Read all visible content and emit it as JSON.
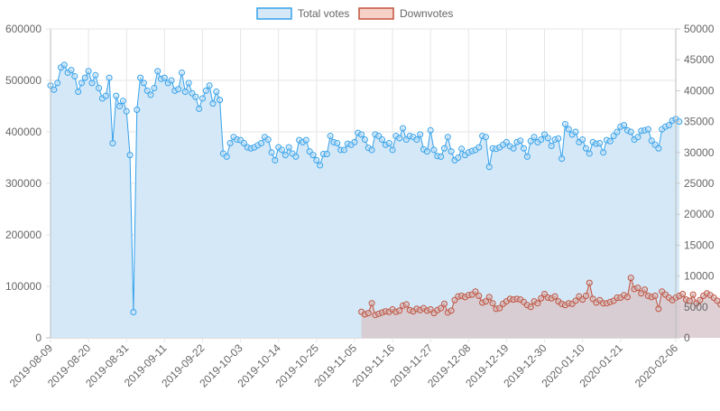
{
  "chart_data": {
    "type": "line",
    "title": "",
    "legend_position": "top",
    "grid": true,
    "x": {
      "start": "2019-08-09",
      "end": "2020-02-06",
      "tick_labels": [
        "2019-08-09",
        "2019-08-20",
        "2019-08-31",
        "2019-09-11",
        "2019-09-22",
        "2019-10-03",
        "2019-10-14",
        "2019-10-25",
        "2019-11-05",
        "2019-11-16",
        "2019-11-27",
        "2019-12-08",
        "2019-12-19",
        "2019-12-30",
        "2020-01-10",
        "2020-01-21",
        "2020-02-06"
      ]
    },
    "y_left": {
      "min": 0,
      "max": 600000,
      "ticks": [
        "0",
        "100000",
        "200000",
        "300000",
        "400000",
        "500000",
        "600000"
      ]
    },
    "y_right": {
      "min": 0,
      "max": 50000,
      "ticks": [
        "0",
        "5000",
        "10000",
        "15000",
        "20000",
        "25000",
        "30000",
        "35000",
        "40000",
        "45000",
        "50000"
      ]
    },
    "series": [
      {
        "name": "Total votes",
        "axis": "left",
        "color": "#36a2eb",
        "fill": "#d4e8f7",
        "start_date": "2019-08-09",
        "values": [
          490000,
          482000,
          495000,
          525000,
          530000,
          515000,
          520000,
          508000,
          478000,
          495000,
          505000,
          518000,
          495000,
          510000,
          485000,
          465000,
          470000,
          505000,
          378000,
          470000,
          450000,
          460000,
          440000,
          355000,
          50000,
          443000,
          505000,
          495000,
          480000,
          472000,
          485000,
          518000,
          503000,
          505000,
          495000,
          500000,
          480000,
          483000,
          515000,
          478000,
          495000,
          475000,
          468000,
          445000,
          465000,
          480000,
          490000,
          455000,
          478000,
          462000,
          358000,
          352000,
          378000,
          390000,
          385000,
          384000,
          378000,
          370000,
          368000,
          370000,
          374000,
          378000,
          390000,
          385000,
          360000,
          345000,
          370000,
          365000,
          355000,
          370000,
          358000,
          352000,
          384000,
          380000,
          384000,
          362000,
          355000,
          345000,
          335000,
          357000,
          357000,
          392000,
          380000,
          378000,
          365000,
          365000,
          377000,
          375000,
          380000,
          398000,
          395000,
          385000,
          369000,
          365000,
          395000,
          392000,
          385000,
          375000,
          378000,
          365000,
          392000,
          388000,
          407000,
          385000,
          392000,
          390000,
          385000,
          395000,
          366000,
          362000,
          403000,
          365000,
          353000,
          352000,
          368000,
          390000,
          362000,
          345000,
          350000,
          367000,
          355000,
          360000,
          363000,
          365000,
          370000,
          392000,
          390000,
          332000,
          368000,
          367000,
          370000,
          375000,
          380000,
          372000,
          368000,
          380000,
          383000,
          368000,
          352000,
          382000,
          390000,
          380000,
          385000,
          395000,
          388000,
          373000,
          385000,
          387000,
          348000,
          415000,
          405000,
          395000,
          400000,
          380000,
          385000,
          368000,
          358000,
          380000,
          377000,
          378000,
          360000,
          384000,
          382000,
          392000,
          400000,
          410000,
          413000,
          403000,
          400000,
          385000,
          390000,
          402000,
          403000,
          405000,
          383000,
          375000,
          368000,
          405000,
          410000,
          413000,
          422000,
          425000,
          420000
        ]
      },
      {
        "name": "Downvotes",
        "axis": "right",
        "color": "#c0523e",
        "fill": "#d8c8cc",
        "start_date": "2019-11-07",
        "values": [
          4200,
          3800,
          4000,
          5600,
          3700,
          3900,
          4100,
          4300,
          4200,
          4600,
          4200,
          4400,
          5200,
          5400,
          4500,
          4300,
          4700,
          4500,
          4800,
          4400,
          4600,
          4000,
          4500,
          4800,
          5500,
          4100,
          4400,
          6100,
          6700,
          6800,
          6600,
          6900,
          7000,
          7500,
          6800,
          5700,
          5900,
          6600,
          5600,
          4700,
          4800,
          5500,
          5900,
          6300,
          6200,
          6300,
          6200,
          5800,
          5300,
          5000,
          5900,
          5600,
          6400,
          7100,
          6500,
          6400,
          6700,
          5900,
          5500,
          5300,
          5600,
          5500,
          6000,
          6700,
          6200,
          6800,
          8900,
          6300,
          5700,
          6100,
          5600,
          5600,
          5800,
          6000,
          6500,
          6500,
          6900,
          6600,
          9700,
          7900,
          8100,
          7200,
          7800,
          6800,
          6600,
          6800,
          4700,
          7500,
          7000,
          6500,
          6100,
          6500,
          6800,
          7100,
          6200,
          6000,
          7000,
          5600,
          6100,
          6800,
          7200,
          6900,
          6500,
          6000,
          5400,
          4400
        ]
      }
    ]
  }
}
